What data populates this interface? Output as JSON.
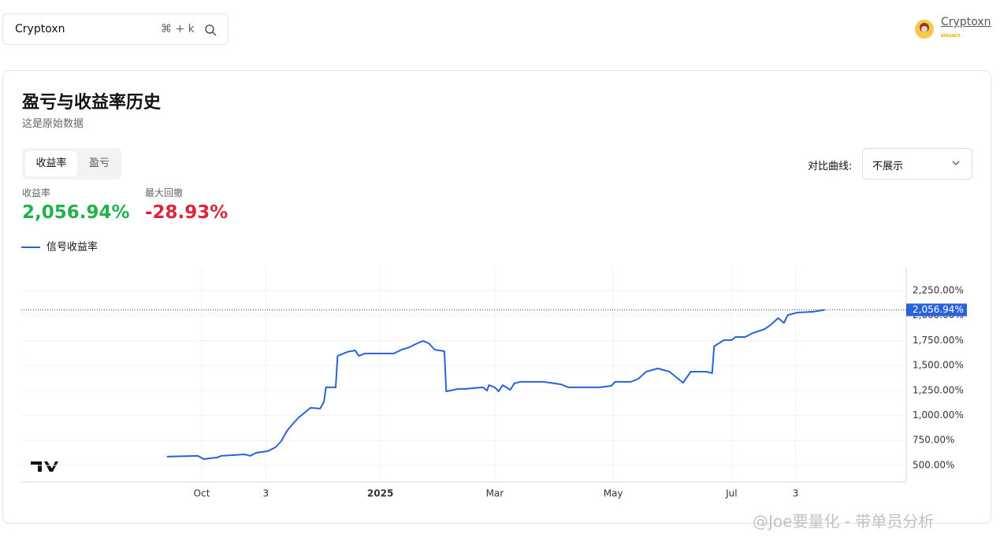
{
  "search": {
    "text": "Cryptoxn",
    "shortcut": "⌘ + k"
  },
  "user": {
    "name": "Cryptoxn",
    "badge": "BINANCE"
  },
  "card": {
    "title": "盈亏与收益率历史",
    "subtitle": "这是原始数据",
    "tabs": [
      "收益率",
      "盈亏"
    ],
    "compare_label": "对比曲线:",
    "compare_value": "不展示",
    "stats": [
      {
        "label": "收益率",
        "value": "2,056.94%"
      },
      {
        "label": "最大回撤",
        "value": "-28.93%"
      }
    ]
  },
  "chart_data": {
    "type": "line",
    "xlim": [
      -93,
      363
    ],
    "ylim": [
      334,
      2479
    ],
    "xticks": [
      {
        "value": 0,
        "label": "Oct"
      },
      {
        "value": 33,
        "label": "3"
      },
      {
        "value": 92,
        "label": "2025"
      },
      {
        "value": 151,
        "label": "Mar"
      },
      {
        "value": 212,
        "label": "May"
      },
      {
        "value": 273,
        "label": "Jul"
      },
      {
        "value": 306,
        "label": "3"
      }
    ],
    "yticks": [
      {
        "value": 500,
        "label": "500.00%"
      },
      {
        "value": 750,
        "label": "750.00%"
      },
      {
        "value": 1000,
        "label": "1,000.00%"
      },
      {
        "value": 1250,
        "label": "1,250.00%"
      },
      {
        "value": 1500,
        "label": "1,500.00%"
      },
      {
        "value": 1750,
        "label": "1,750.00%"
      },
      {
        "value": 2000,
        "label": "2,000.00%"
      },
      {
        "value": 2250,
        "label": "2,250.00%"
      }
    ],
    "grid": true,
    "series": [
      {
        "name": "信号收益率",
        "color": "#2962d9",
        "x": [
          -18,
          -2,
          1,
          8,
          10,
          22,
          25,
          28,
          34,
          38,
          41,
          44,
          47,
          50,
          54,
          56,
          61,
          63,
          64,
          69,
          70,
          75,
          79,
          81,
          84,
          91,
          99,
          103,
          107,
          111,
          114,
          117,
          120,
          125,
          126,
          128,
          132,
          136,
          140,
          145,
          147,
          148,
          151,
          153,
          155,
          159,
          161,
          164,
          176,
          185,
          189,
          195,
          205,
          211,
          213,
          221,
          225,
          229,
          235,
          241,
          245,
          248,
          252,
          260,
          263,
          264,
          269,
          273,
          275,
          280,
          284,
          290,
          293,
          297,
          300,
          302,
          307,
          315,
          321
        ],
        "values": [
          587,
          595,
          563,
          579,
          595,
          610,
          595,
          626,
          642,
          681,
          744,
          847,
          918,
          981,
          1044,
          1076,
          1068,
          1139,
          1281,
          1281,
          1596,
          1636,
          1651,
          1596,
          1620,
          1620,
          1620,
          1659,
          1683,
          1722,
          1746,
          1722,
          1659,
          1643,
          1241,
          1249,
          1265,
          1265,
          1273,
          1281,
          1249,
          1304,
          1281,
          1241,
          1304,
          1257,
          1320,
          1336,
          1336,
          1312,
          1281,
          1281,
          1281,
          1296,
          1336,
          1336,
          1367,
          1438,
          1470,
          1438,
          1375,
          1328,
          1438,
          1438,
          1423,
          1691,
          1754,
          1754,
          1785,
          1785,
          1825,
          1864,
          1904,
          1975,
          1927,
          2006,
          2030,
          2038,
          2056.94
        ]
      }
    ],
    "last_label": {
      "value": 2056.94,
      "label": "2,056.94%"
    }
  },
  "watermark": "@Joe要量化 - 带单员分析"
}
